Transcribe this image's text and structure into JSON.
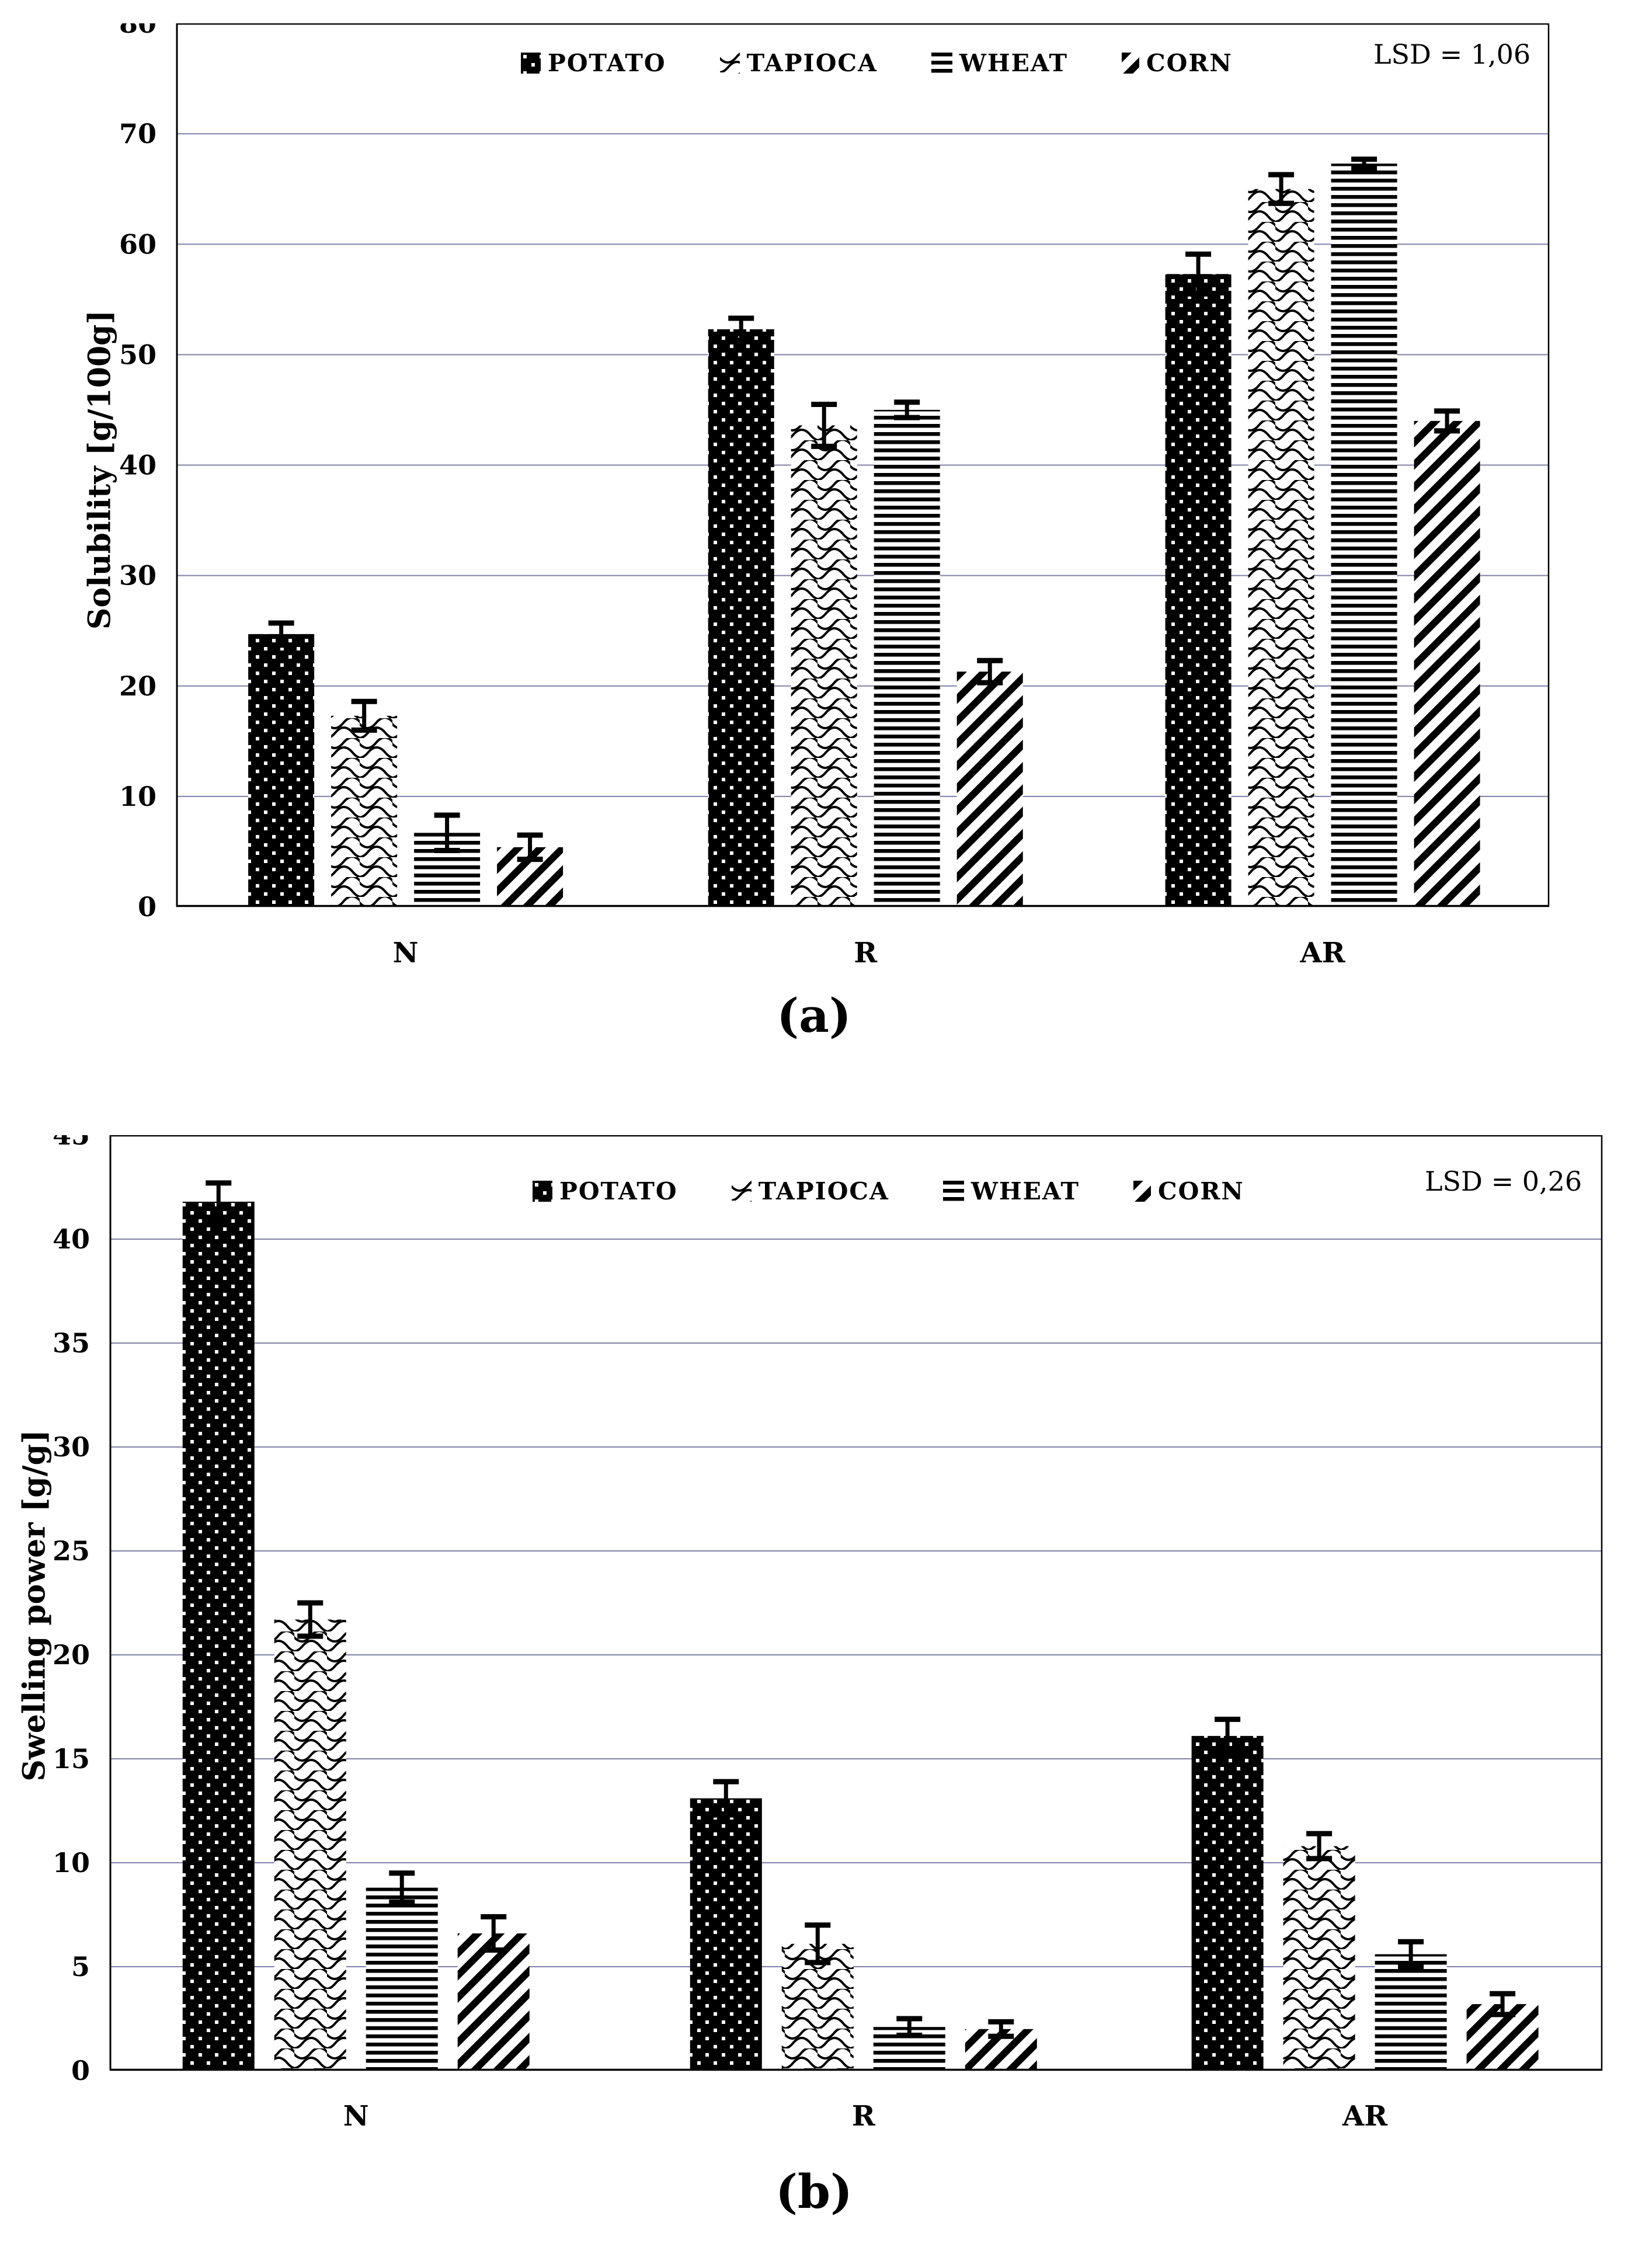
{
  "figure": {
    "caption_a": "(a)",
    "caption_b": "(b)"
  },
  "colors": {
    "background": "#ffffff",
    "bar_color": "#000000",
    "grid": "#8080a8",
    "axis": "#000000"
  },
  "chart_data": [
    {
      "id": "a",
      "type": "bar",
      "title": "",
      "ylabel": "Solubility [g/100g]",
      "xlabel": "",
      "ylim": [
        0,
        80
      ],
      "ytick_step": 10,
      "grid": true,
      "legend_position": "top-center",
      "annotation": "LSD = 1,06",
      "categories": [
        "N",
        "R",
        "AR"
      ],
      "series": [
        {
          "name": "POTATO",
          "pattern": "dots",
          "values": [
            24.7,
            52.3,
            57.3
          ],
          "errors": [
            1.0,
            1.0,
            1.8
          ]
        },
        {
          "name": "TAPIOCA",
          "pattern": "waves",
          "values": [
            17.3,
            43.6,
            65.0
          ],
          "errors": [
            1.3,
            1.9,
            1.3
          ]
        },
        {
          "name": "WHEAT",
          "pattern": "hlines",
          "values": [
            6.7,
            45.0,
            67.3
          ],
          "errors": [
            1.6,
            0.7,
            0.4
          ]
        },
        {
          "name": "CORN",
          "pattern": "diagonal",
          "values": [
            5.4,
            21.3,
            44.0
          ],
          "errors": [
            1.1,
            1.0,
            0.9
          ]
        }
      ]
    },
    {
      "id": "b",
      "type": "bar",
      "title": "",
      "ylabel": "Swelling power [g/g]",
      "xlabel": "",
      "ylim": [
        0,
        45
      ],
      "ytick_step": 5,
      "grid": true,
      "legend_position": "top-center",
      "annotation": "LSD = 0,26",
      "categories": [
        "N",
        "R",
        "AR"
      ],
      "series": [
        {
          "name": "POTATO",
          "pattern": "dots",
          "values": [
            41.8,
            13.1,
            16.1
          ],
          "errors": [
            0.9,
            0.8,
            0.8
          ]
        },
        {
          "name": "TAPIOCA",
          "pattern": "waves",
          "values": [
            21.7,
            6.1,
            10.8
          ],
          "errors": [
            0.8,
            0.9,
            0.6
          ]
        },
        {
          "name": "WHEAT",
          "pattern": "hlines",
          "values": [
            8.8,
            2.1,
            5.6
          ],
          "errors": [
            0.7,
            0.4,
            0.6
          ]
        },
        {
          "name": "CORN",
          "pattern": "diagonal",
          "values": [
            6.6,
            2.0,
            3.2
          ],
          "errors": [
            0.8,
            0.35,
            0.5
          ]
        }
      ]
    }
  ]
}
